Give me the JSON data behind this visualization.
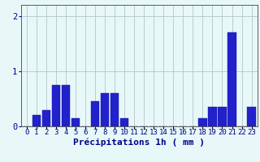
{
  "hours": [
    0,
    1,
    2,
    3,
    4,
    5,
    6,
    7,
    8,
    9,
    10,
    11,
    12,
    13,
    14,
    15,
    16,
    17,
    18,
    19,
    20,
    21,
    22,
    23
  ],
  "values": [
    0.0,
    0.2,
    0.3,
    0.75,
    0.75,
    0.15,
    0.0,
    0.45,
    0.6,
    0.6,
    0.15,
    0.0,
    0.0,
    0.0,
    0.0,
    0.0,
    0.0,
    0.0,
    0.15,
    0.35,
    0.35,
    1.7,
    0.0,
    0.35
  ],
  "bar_color": "#2222cc",
  "bar_edge_color": "#1111aa",
  "background_color": "#e8f8f8",
  "grid_color": "#b0c8c8",
  "axis_color": "#444444",
  "xlabel": "Précipitations 1h ( mm )",
  "ylim": [
    0,
    2.2
  ],
  "yticks": [
    0,
    1,
    2
  ],
  "xlabel_fontsize": 8,
  "tick_fontsize": 6.5,
  "tick_color": "#000088"
}
